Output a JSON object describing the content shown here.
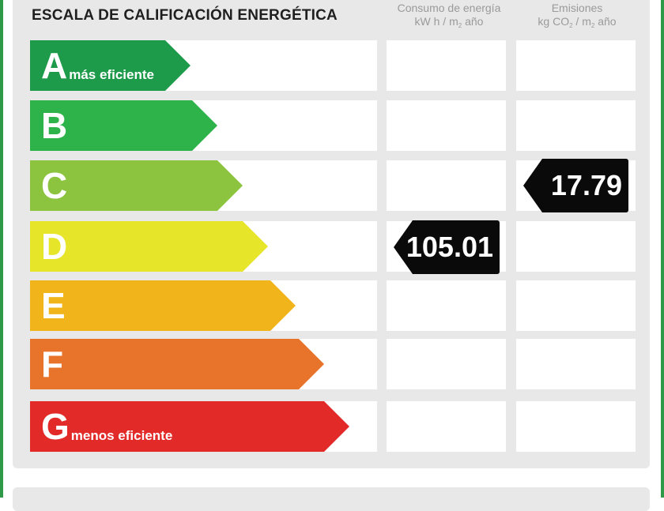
{
  "header": {
    "title": "ESCALA DE CALIFICACIÓN ENERGÉTICA",
    "consumo": {
      "line1": "Consumo de energía",
      "unit_a": "kW h / m",
      "unit_sub": "2",
      "unit_b": " año"
    },
    "emisiones": {
      "line1": "Emisiones",
      "unit_a": "kg CO",
      "unit_sub": "2",
      "unit_c": " / m",
      "unit_sub2": "2",
      "unit_b": " año"
    }
  },
  "ratings": [
    {
      "letter": "A",
      "note": "más eficiente",
      "color": "#1e9a4b"
    },
    {
      "letter": "B",
      "note": "",
      "color": "#2db34a"
    },
    {
      "letter": "C",
      "note": "",
      "color": "#8cc43f"
    },
    {
      "letter": "D",
      "note": "",
      "color": "#e6e52a"
    },
    {
      "letter": "E",
      "note": "",
      "color": "#f1b51b"
    },
    {
      "letter": "F",
      "note": "",
      "color": "#e8732a"
    },
    {
      "letter": "G",
      "note": "menos eficiente",
      "color": "#e22a28"
    }
  ],
  "results": {
    "consumo": {
      "value": "105.01",
      "rating": "D"
    },
    "emisiones": {
      "value": "17.79",
      "rating": "C"
    }
  }
}
